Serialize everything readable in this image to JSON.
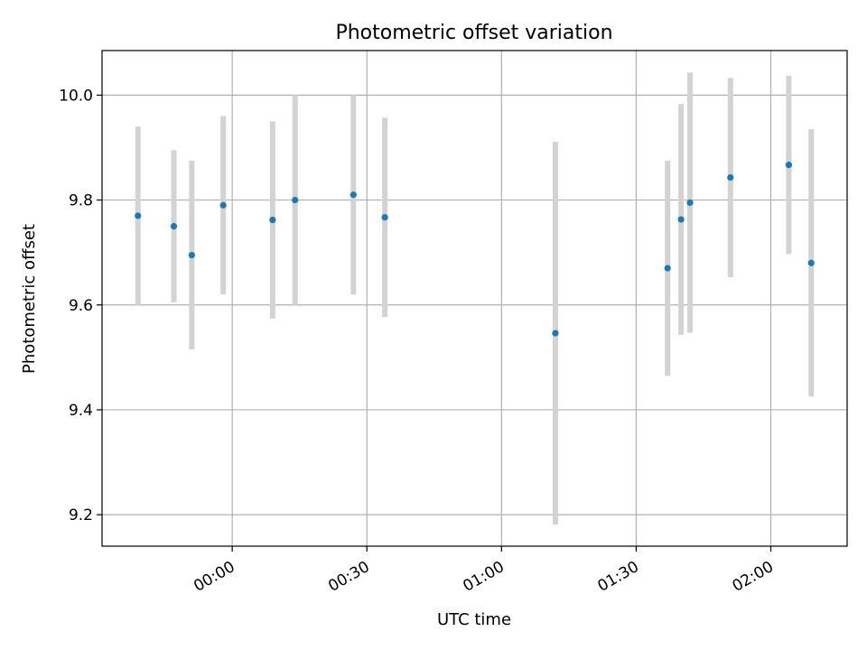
{
  "chart_data": {
    "type": "scatter",
    "title": "Photometric offset variation",
    "xlabel": "UTC time",
    "ylabel": "Photometric offset",
    "x_unit": "time of day (HH:MM), after midnight; negative = before 00:00",
    "x_ticks": [
      "00:00",
      "00:30",
      "01:00",
      "01:30",
      "02:00"
    ],
    "y_ticks": [
      "9.2",
      "9.4",
      "9.6",
      "9.8",
      "10.0"
    ],
    "xlim": [
      "23:31",
      "02:17"
    ],
    "ylim": [
      9.14,
      10.085
    ],
    "grid": true,
    "colors": {
      "point": "#1f77b4",
      "errorbar": "#d3d3d3",
      "grid": "#b0b0b0"
    },
    "points": [
      {
        "x": "23:39",
        "y": 9.77,
        "yerr": 0.17
      },
      {
        "x": "23:47",
        "y": 9.75,
        "yerr": 0.145
      },
      {
        "x": "23:51",
        "y": 9.695,
        "yerr": 0.18
      },
      {
        "x": "23:58",
        "y": 9.79,
        "yerr": 0.17
      },
      {
        "x": "00:09",
        "y": 9.762,
        "yerr": 0.188
      },
      {
        "x": "00:14",
        "y": 9.8,
        "yerr": 0.2
      },
      {
        "x": "00:27",
        "y": 9.81,
        "yerr": 0.19
      },
      {
        "x": "00:34",
        "y": 9.767,
        "yerr": 0.19
      },
      {
        "x": "01:12",
        "y": 9.546,
        "yerr": 0.365
      },
      {
        "x": "01:37",
        "y": 9.67,
        "yerr": 0.205
      },
      {
        "x": "01:40",
        "y": 9.763,
        "yerr": 0.22
      },
      {
        "x": "01:42",
        "y": 9.795,
        "yerr": 0.248
      },
      {
        "x": "01:51",
        "y": 9.843,
        "yerr": 0.19
      },
      {
        "x": "02:04",
        "y": 9.867,
        "yerr": 0.17
      },
      {
        "x": "02:09",
        "y": 9.68,
        "yerr": 0.255
      }
    ]
  }
}
